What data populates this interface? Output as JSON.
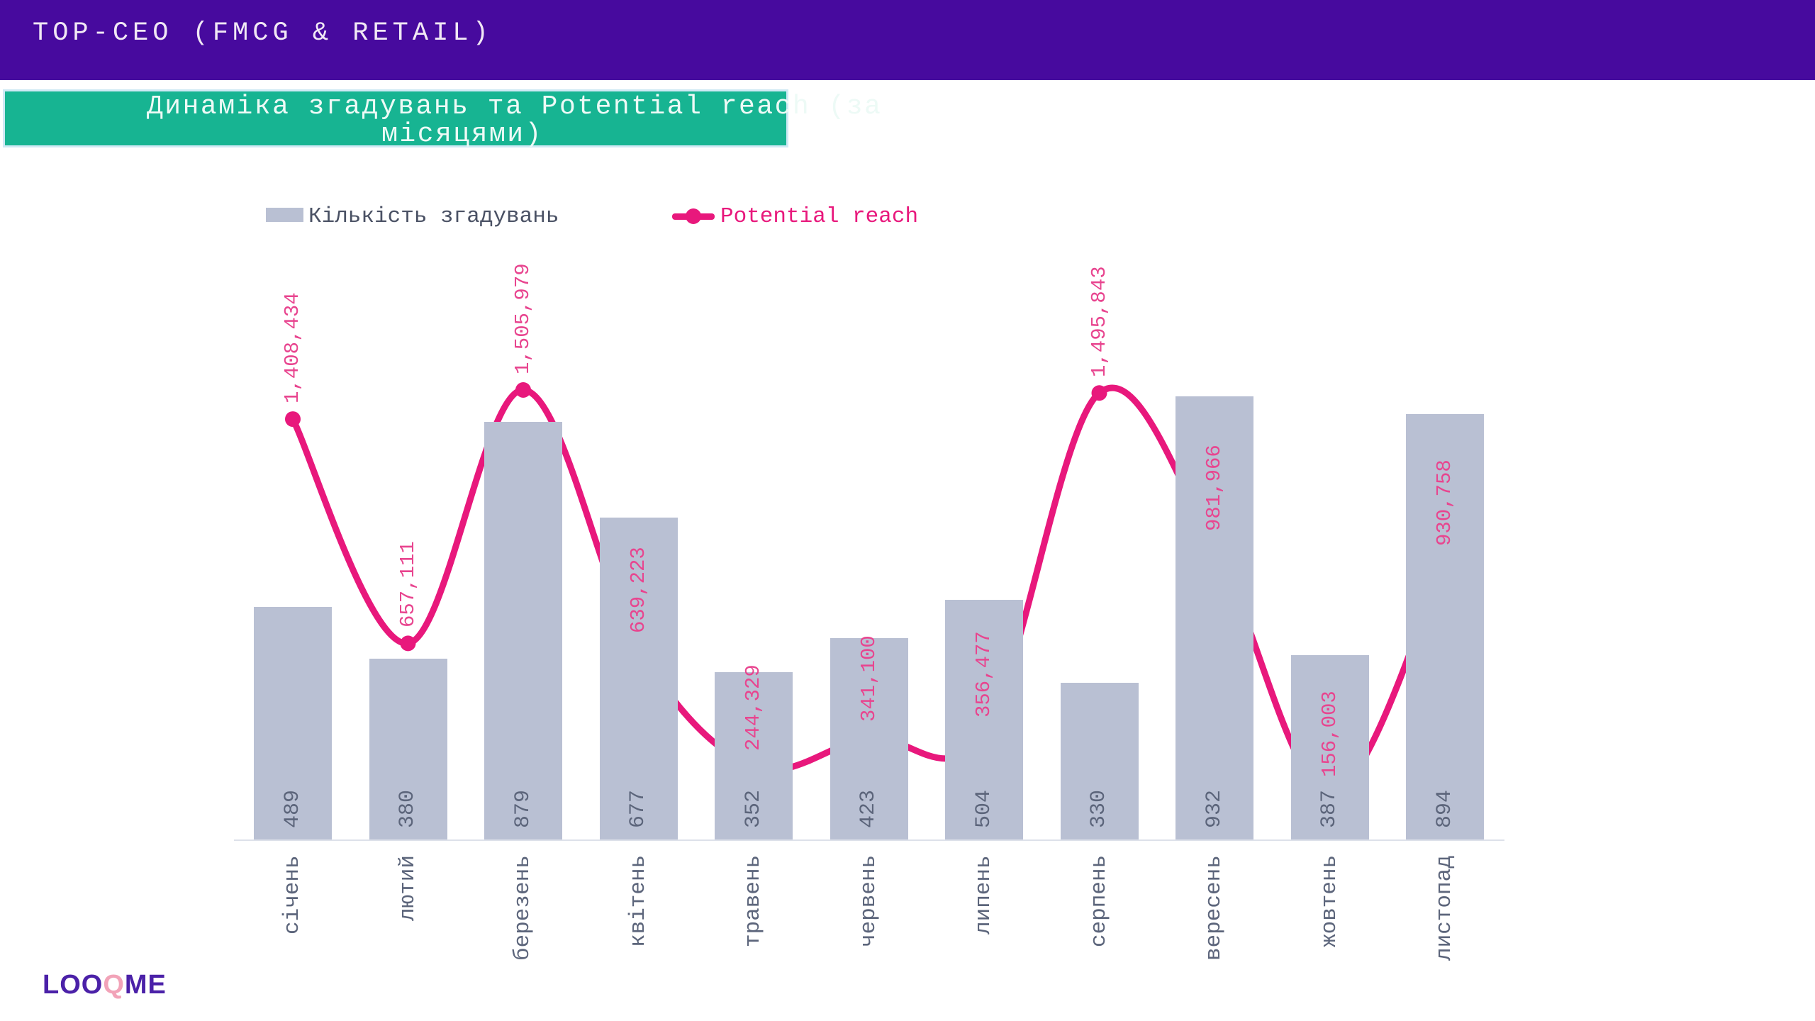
{
  "header": {
    "title": "TOP-CEO (FMCG & RETAIL)"
  },
  "banner": {
    "line1": "Динаміка згадувань та Potential reach (за",
    "line2": "місяцями)"
  },
  "legend": {
    "bars_label": "Кількість згадувань",
    "line_label": "Potential reach"
  },
  "chart_data": {
    "type": "bar",
    "subtype": "bar+line combo",
    "title": "Динаміка згадувань та Potential reach (за місяцями)",
    "categories": [
      "січень",
      "лютий",
      "березень",
      "квітень",
      "травень",
      "червень",
      "липень",
      "серпень",
      "вересень",
      "жовтень",
      "листопад"
    ],
    "series": [
      {
        "name": "Кількість згадувань",
        "type": "bar",
        "values": [
          489,
          380,
          879,
          677,
          352,
          423,
          504,
          330,
          932,
          387,
          894
        ]
      },
      {
        "name": "Potential reach",
        "type": "line",
        "values": [
          1408434,
          657111,
          1505979,
          639223,
          244329,
          341100,
          356477,
          1495843,
          981966,
          156003,
          930758
        ]
      }
    ],
    "bar_value_labels": [
      "489",
      "380",
      "879",
      "677",
      "352",
      "423",
      "504",
      "330",
      "932",
      "387",
      "894"
    ],
    "line_value_labels": [
      "1,408,434",
      "657,111",
      "1,505,979",
      "639,223",
      "244,329",
      "341,100",
      "356,477",
      "1,495,843",
      "981,966",
      "156,003",
      "930,758"
    ],
    "xlabel": "",
    "ylabel": "",
    "grid": false,
    "legend_position": "top",
    "bar_axis_range": [
      0,
      1000
    ],
    "line_axis_range": [
      0,
      1600000
    ]
  },
  "logo": {
    "part1": "LOO",
    "q": "Q",
    "part2": "ME"
  },
  "colors": {
    "purple_header": "#470a9e",
    "title_text": "#f1e8f5",
    "green_banner": "#17b492",
    "banner_border": "#cfe9f4",
    "banner_text": "#edfaf6",
    "bar_fill": "#b9c0d3",
    "line_pink": "#e8187c",
    "pink_label": "#e8458f",
    "axis_text": "#5c657b",
    "legend_text": "#4a5164",
    "logo_purple": "#4b21a8",
    "logo_pink": "#f2a3b8"
  }
}
